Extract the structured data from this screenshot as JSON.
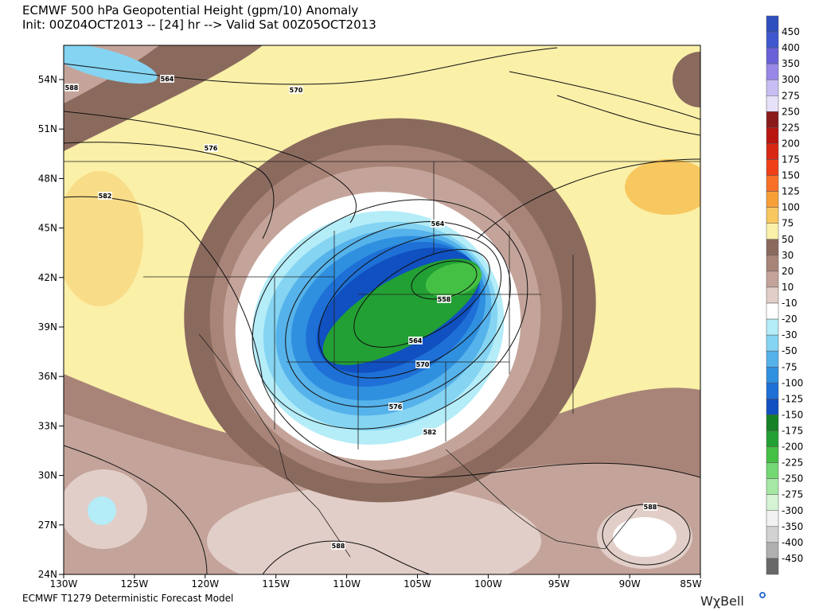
{
  "header": {
    "title": "ECMWF 500 hPa Geopotential Height (gpm/10) Anomaly",
    "subtitle": "Init: 00Z04OCT2013 -- [24] hr --> Valid Sat 00Z05OCT2013"
  },
  "map": {
    "lat_labels": [
      "54N",
      "51N",
      "48N",
      "45N",
      "42N",
      "39N",
      "36N",
      "33N",
      "30N",
      "27N",
      "24N"
    ],
    "lon_labels": [
      "130W",
      "125W",
      "120W",
      "115W",
      "110W",
      "105W",
      "100W",
      "95W",
      "90W",
      "85W"
    ],
    "contour_labels": [
      "588",
      "564",
      "570",
      "576",
      "582",
      "564",
      "558",
      "564",
      "570",
      "576",
      "582",
      "588",
      "588"
    ]
  },
  "colorbar": {
    "labels": [
      "450",
      "400",
      "350",
      "300",
      "275",
      "250",
      "225",
      "200",
      "175",
      "150",
      "125",
      "100",
      "75",
      "50",
      "30",
      "20",
      "10",
      "-10",
      "-20",
      "-30",
      "-50",
      "-75",
      "-100",
      "-125",
      "-150",
      "-175",
      "-200",
      "-225",
      "-250",
      "-275",
      "-300",
      "-350",
      "-400",
      "-450"
    ],
    "colors": [
      "#2f4fbf",
      "#3f58d0",
      "#6a60d8",
      "#9a88e8",
      "#c8bef4",
      "#e6e0f8",
      "#8b1a1a",
      "#b81510",
      "#d82814",
      "#f04018",
      "#f87028",
      "#f8a038",
      "#f8c860",
      "#faf0a8",
      "#8b6a5e",
      "#a88478",
      "#c4a49a",
      "#e2cec8",
      "#ffffff",
      "#b4ecf8",
      "#84d4f2",
      "#56b2ea",
      "#3090e0",
      "#1e70d6",
      "#1050c0",
      "#148226",
      "#22a034",
      "#44c044",
      "#74d874",
      "#a4e8a4",
      "#d4f4d4",
      "#f2f2f2",
      "#d2d2d2",
      "#b0b0b0",
      "#686868"
    ]
  },
  "footer": {
    "model": "ECMWF T1279 Deterministic Forecast Model",
    "logo": "WχBell"
  }
}
